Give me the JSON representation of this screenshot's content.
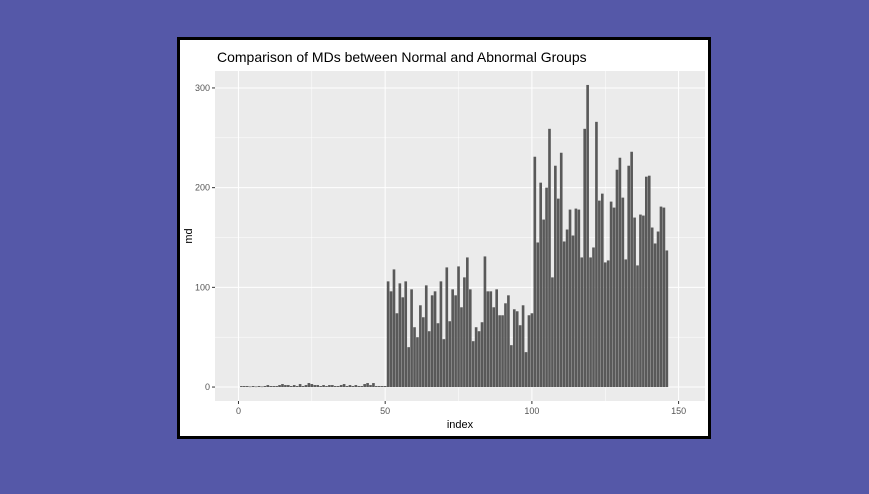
{
  "chart_data": {
    "type": "bar",
    "title": "Comparison of MDs between Normal and Abnormal Groups",
    "xlabel": "index",
    "ylabel": "md",
    "xlim": [
      -8,
      159
    ],
    "ylim": [
      -14,
      317
    ],
    "x_ticks": [
      0,
      50,
      100,
      150
    ],
    "y_ticks": [
      0,
      100,
      200,
      300
    ],
    "grid": true,
    "legend": "none",
    "colors": {
      "bar": "#595959",
      "panel": "#ebebeb",
      "grid": "#ffffff",
      "frame_background": "#ffffff",
      "page_background": "#5558a8"
    },
    "x": [
      1,
      2,
      3,
      4,
      5,
      6,
      7,
      8,
      9,
      10,
      11,
      12,
      13,
      14,
      15,
      16,
      17,
      18,
      19,
      20,
      21,
      22,
      23,
      24,
      25,
      26,
      27,
      28,
      29,
      30,
      31,
      32,
      33,
      34,
      35,
      36,
      37,
      38,
      39,
      40,
      41,
      42,
      43,
      44,
      45,
      46,
      47,
      48,
      49,
      50,
      51,
      52,
      53,
      54,
      55,
      56,
      57,
      58,
      59,
      60,
      61,
      62,
      63,
      64,
      65,
      66,
      67,
      68,
      69,
      70,
      71,
      72,
      73,
      74,
      75,
      76,
      77,
      78,
      79,
      80,
      81,
      82,
      83,
      84,
      85,
      86,
      87,
      88,
      89,
      90,
      91,
      92,
      93,
      94,
      95,
      96,
      97,
      98,
      99,
      100,
      101,
      102,
      103,
      104,
      105,
      106,
      107,
      108,
      109,
      110,
      111,
      112,
      113,
      114,
      115,
      116,
      117,
      118,
      119,
      120,
      121,
      122,
      123,
      124,
      125,
      126,
      127,
      128,
      129,
      130,
      131,
      132,
      133,
      134,
      135,
      136,
      137,
      138,
      139,
      140,
      141,
      142,
      143,
      144,
      145,
      146,
      147,
      148,
      149,
      150
    ],
    "values": [
      1,
      1,
      1,
      0.5,
      1,
      0.5,
      1,
      0.5,
      1,
      2,
      1,
      1,
      1,
      2,
      3,
      2,
      2,
      1,
      2,
      1,
      3,
      1,
      2,
      4,
      3,
      2,
      2,
      1,
      2,
      1,
      2,
      2,
      1,
      1,
      2,
      3,
      1,
      2,
      1,
      2,
      1,
      1,
      3,
      4,
      2,
      4,
      1,
      1,
      1,
      1,
      106,
      96,
      118,
      74,
      104,
      90,
      106,
      40,
      98,
      60,
      50,
      82,
      70,
      102,
      56,
      92,
      96,
      64,
      106,
      48,
      120,
      66,
      98,
      92,
      121,
      80,
      110,
      130,
      98,
      46,
      60,
      56,
      65,
      131,
      96,
      96,
      80,
      98,
      72,
      72,
      84,
      92,
      42,
      78,
      76,
      62,
      82,
      35,
      72,
      74,
      231,
      145,
      205,
      168,
      200,
      259,
      110,
      222,
      189,
      235,
      146,
      158,
      178,
      152,
      179,
      178,
      130,
      259,
      303,
      130,
      140,
      266,
      187,
      194,
      125,
      127,
      186,
      180,
      218,
      230,
      190,
      128,
      222,
      236,
      170,
      122,
      173,
      172,
      211,
      212,
      160,
      144,
      156,
      181,
      180,
      137,
      0,
      0,
      0,
      0
    ]
  }
}
